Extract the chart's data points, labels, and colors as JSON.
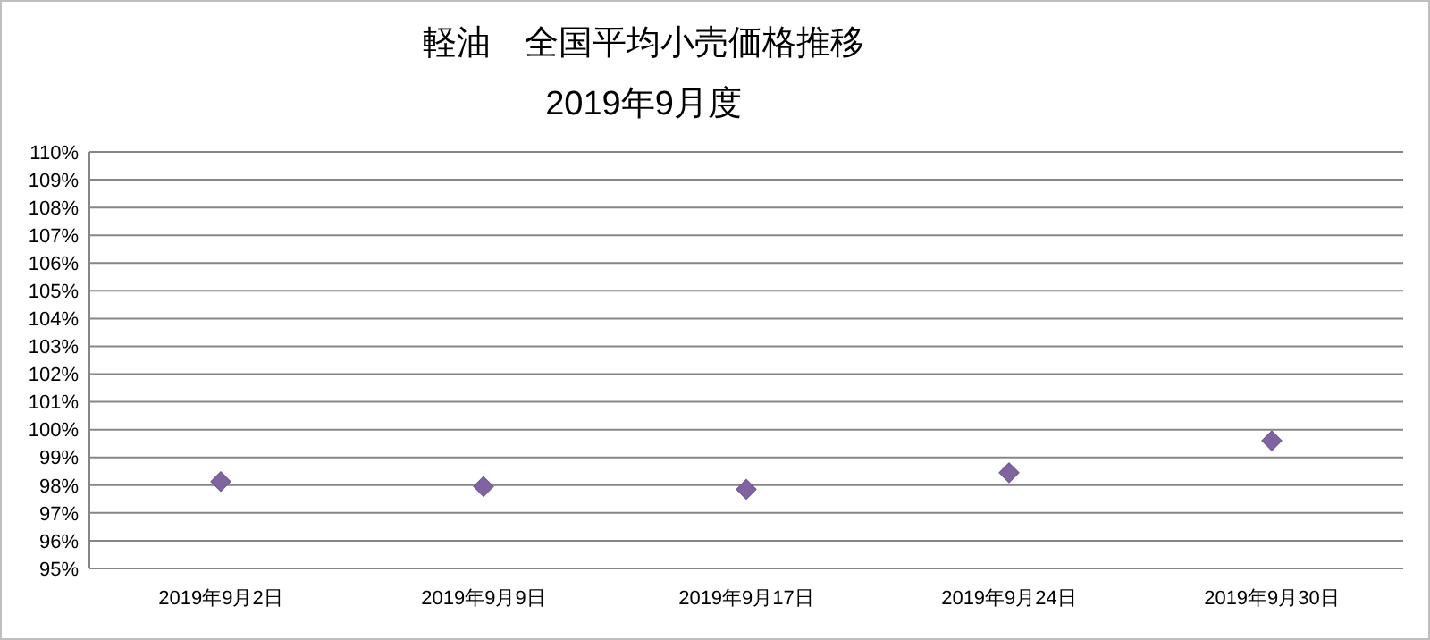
{
  "chart_data": {
    "type": "scatter",
    "title": "軽油　全国平均小売価格推移",
    "subtitle": "2019年9月度",
    "categories": [
      "2019年9月2日",
      "2019年9月9日",
      "2019年9月17日",
      "2019年9月24日",
      "2019年9月30日"
    ],
    "series": [
      {
        "color": "#8064a2",
        "values": [
          98.13,
          97.95,
          97.85,
          98.45,
          99.6
        ]
      }
    ],
    "marker": "diamond",
    "grid": "y",
    "ylim": [
      95,
      110
    ],
    "yticks": [
      {
        "value": 95,
        "label": "95%"
      },
      {
        "value": 96,
        "label": "96%"
      },
      {
        "value": 97,
        "label": "97%"
      },
      {
        "value": 98,
        "label": "98%"
      },
      {
        "value": 99,
        "label": "99%"
      },
      {
        "value": 100,
        "label": "100%"
      },
      {
        "value": 101,
        "label": "101%"
      },
      {
        "value": 102,
        "label": "102%"
      },
      {
        "value": 103,
        "label": "103%"
      },
      {
        "value": 104,
        "label": "104%"
      },
      {
        "value": 105,
        "label": "105%"
      },
      {
        "value": 106,
        "label": "106%"
      },
      {
        "value": 107,
        "label": "107%"
      },
      {
        "value": 108,
        "label": "108%"
      },
      {
        "value": 109,
        "label": "109%"
      },
      {
        "value": 110,
        "label": "110%"
      }
    ]
  }
}
